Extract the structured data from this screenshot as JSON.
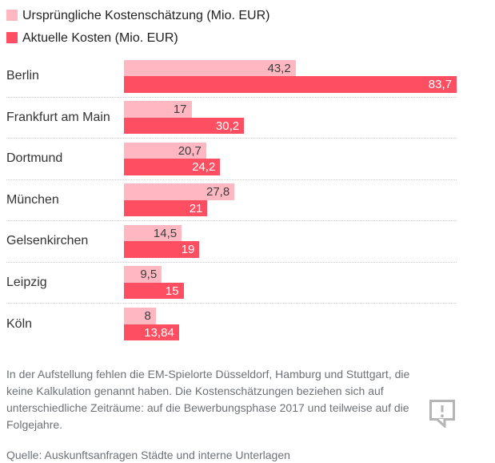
{
  "legend": {
    "items": [
      {
        "label": "Ursprüngliche Kostenschätzung (Mio. EUR)",
        "color": "#ffb8c2"
      },
      {
        "label": "Aktuelle Kosten (Mio. EUR)",
        "color": "#fd4f61"
      }
    ]
  },
  "chart_data": {
    "type": "bar",
    "orientation": "horizontal",
    "title": "",
    "xlabel": "",
    "ylabel": "",
    "grid": false,
    "legend_position": "top-left",
    "xmax": 83.7,
    "categories": [
      "Berlin",
      "Frankfurt am Main",
      "Dortmund",
      "München",
      "Gelsenkirchen",
      "Leipzig",
      "Köln"
    ],
    "series": [
      {
        "name": "Ursprüngliche Kostenschätzung (Mio. EUR)",
        "color": "#ffb8c2",
        "values": [
          43.2,
          17,
          20.7,
          27.8,
          14.5,
          9.5,
          8
        ],
        "labels": [
          "43,2",
          "17",
          "20,7",
          "27,8",
          "14,5",
          "9,5",
          "8"
        ]
      },
      {
        "name": "Aktuelle Kosten (Mio. EUR)",
        "color": "#fd4f61",
        "values": [
          83.7,
          30.2,
          24.2,
          21,
          19,
          15,
          13.84
        ],
        "labels": [
          "83,7",
          "30,2",
          "24,2",
          "21",
          "19",
          "15",
          "13,84"
        ]
      }
    ]
  },
  "footer": {
    "note": "In der Aufstellung fehlen die EM-Spielorte Düsseldorf, Hamburg und Stuttgart, die keine Kalkulation genannt haben. Die Kostenschätzungen beziehen sich auf unterschiedliche Zeiträume: auf die Bewerbungsphase 2017 und teilweise auf die Folgejahre.",
    "source": "Quelle: Auskunftsanfragen Städte und interne Unterlagen"
  },
  "icons": {
    "feedback": "speech-bubble-exclamation-icon"
  },
  "colors": {
    "original": "#ffb8c2",
    "current": "#fd4f61",
    "separator": "#cccccc",
    "city_text": "#333333",
    "value_on_light": "#3d3d3d",
    "value_on_dark": "#ffffff",
    "note_text": "#6e7276",
    "icon": "#b5b5b5"
  }
}
